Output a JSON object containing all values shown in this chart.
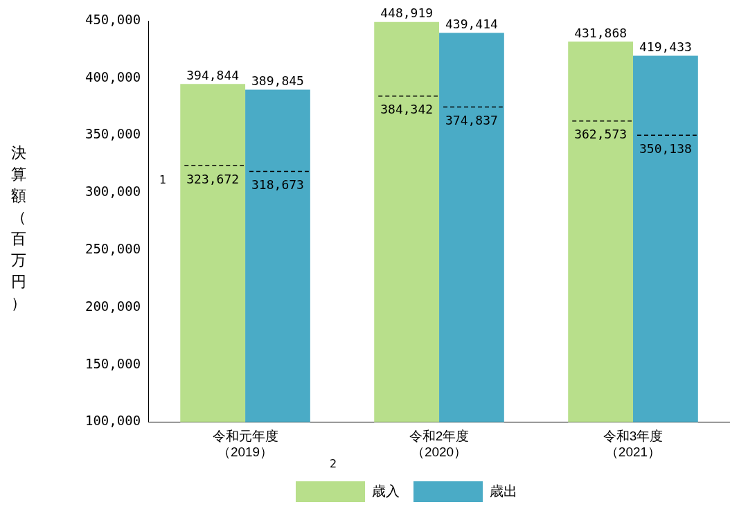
{
  "chart_data": {
    "type": "bar",
    "ylabel": "決算額（百万円）",
    "categories": [
      "令和元年度（2019）",
      "令和2年度（2020）",
      "令和3年度（2021）"
    ],
    "series": [
      {
        "name": "歳入",
        "color": "#b8df8b",
        "values": [
          394844,
          448919,
          431868
        ],
        "value_labels": [
          "394,844",
          "448,919",
          "431,868"
        ]
      },
      {
        "name": "歳出",
        "color": "#4aabc6",
        "values": [
          389845,
          439414,
          419433
        ],
        "value_labels": [
          "389,845",
          "439,414",
          "419,433"
        ]
      }
    ],
    "ylim": [
      100000,
      450000
    ],
    "yticks": [
      {
        "value": 100000,
        "label": "100,000"
      },
      {
        "value": 150000,
        "label": "150,000"
      },
      {
        "value": 200000,
        "label": "200,000"
      },
      {
        "value": 250000,
        "label": "250,000"
      },
      {
        "value": 300000,
        "label": "300,000"
      },
      {
        "value": 350000,
        "label": "350,000"
      },
      {
        "value": 400000,
        "label": "400,000"
      },
      {
        "value": 450000,
        "label": "450,000"
      }
    ],
    "grid": false,
    "legend": "bottom",
    "annotations": [
      {
        "text": "323,672",
        "x": "令和元年度（2019）",
        "y": 323672
      },
      {
        "text": "318,673",
        "x": "令和元年度（2019）",
        "y": 318673
      },
      {
        "text": "384,342",
        "x": "令和2年度（2020）",
        "y": 384342
      },
      {
        "text": "374,837",
        "x": "令和2年度（2020）",
        "y": 374837
      },
      {
        "text": "362,573",
        "x": "令和3年度（2021）",
        "y": 362573
      },
      {
        "text": "350,138",
        "x": "令和3年度（2021）",
        "y": 350138
      },
      "1",
      "2"
    ]
  }
}
